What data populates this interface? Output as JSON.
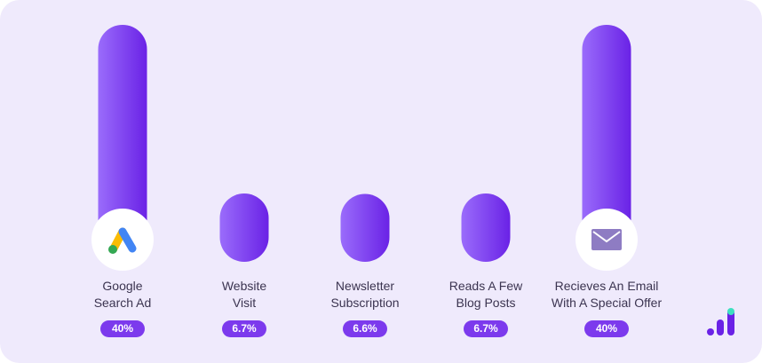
{
  "chart_data": {
    "type": "bar",
    "categories": [
      "Google Search Ad",
      "Website Visit",
      "Newsletter Subscription",
      "Reads A Few Blog Posts",
      "Recieves An Email With A Special Offer"
    ],
    "values": [
      40,
      6.7,
      6.6,
      6.7,
      40
    ],
    "value_labels": [
      "40%",
      "6.7%",
      "6.6%",
      "6.7%",
      "40%"
    ],
    "color": "#6a22e6"
  }
}
